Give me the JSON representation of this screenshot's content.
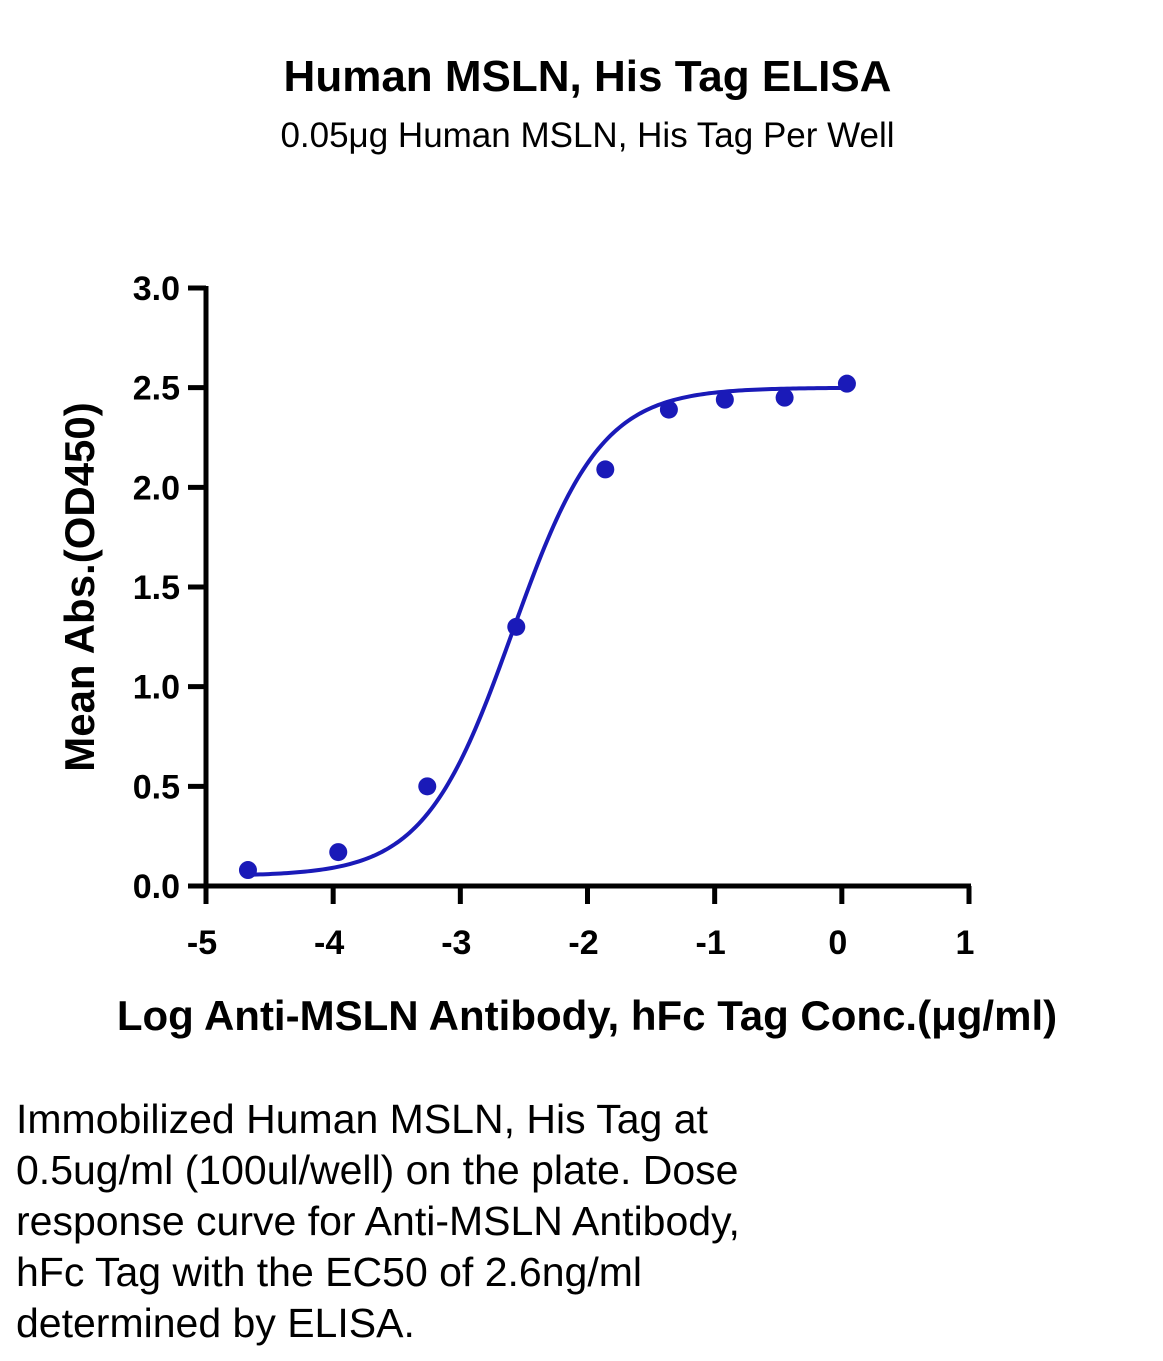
{
  "chart_data": {
    "type": "scatter",
    "title": "Human MSLN, His Tag ELISA",
    "subtitle": "0.05μg Human MSLN, His Tag Per Well",
    "xlabel": "Log Anti-MSLN Antibody, hFc Tag Conc.(μg/ml)",
    "ylabel": "Mean Abs.(OD450)",
    "xlim": [
      -5,
      1
    ],
    "ylim": [
      0.0,
      3.0
    ],
    "x_ticks": [
      "-5",
      "-4",
      "-3",
      "-2",
      "-1",
      "0",
      "1"
    ],
    "y_ticks": [
      "0.0",
      "0.5",
      "1.0",
      "1.5",
      "2.0",
      "2.5",
      "3.0"
    ],
    "grid": false,
    "legend": "none",
    "series": [
      {
        "x": [
          -4.67,
          -3.96,
          -3.26,
          -2.56,
          -1.86,
          -1.36,
          -0.92,
          -0.45,
          0.04
        ],
        "y": [
          0.08,
          0.17,
          0.5,
          1.3,
          2.09,
          2.39,
          2.44,
          2.45,
          2.52
        ],
        "color": "#1a1ab8",
        "fit": {
          "model": "4PL",
          "bottom": 0.05,
          "top": 2.5,
          "log_ec50": -2.59,
          "hill": 1.25
        }
      }
    ],
    "colors": {
      "series": "#1a1ab8",
      "axes": "#000000"
    }
  },
  "caption": "Immobilized Human MSLN, His Tag at\n0.5ug/ml (100ul/well) on the plate. Dose\nresponse curve for Anti-MSLN Antibody,\nhFc Tag with the EC50 of 2.6ng/ml\ndetermined by ELISA."
}
